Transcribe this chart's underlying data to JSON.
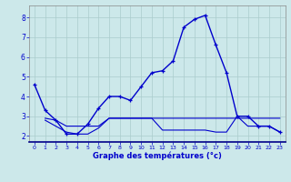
{
  "xlabel": "Graphe des températures (°c)",
  "bg_color": "#cce8ea",
  "grid_color": "#aacccc",
  "line_color": "#0000cc",
  "xlim": [
    -0.5,
    23.5
  ],
  "ylim": [
    1.7,
    8.6
  ],
  "yticks": [
    2,
    3,
    4,
    5,
    6,
    7,
    8
  ],
  "xticks": [
    0,
    1,
    2,
    3,
    4,
    5,
    6,
    7,
    8,
    9,
    10,
    11,
    12,
    13,
    14,
    15,
    16,
    17,
    18,
    19,
    20,
    21,
    22,
    23
  ],
  "series1_x": [
    0,
    1,
    2,
    3,
    4,
    5,
    6,
    7,
    8,
    9,
    10,
    11,
    12,
    13,
    14,
    15,
    16,
    17,
    18,
    19,
    20,
    21,
    22,
    23
  ],
  "series1_y": [
    4.6,
    3.3,
    2.8,
    2.1,
    2.1,
    2.6,
    3.4,
    4.0,
    4.0,
    3.8,
    4.5,
    5.2,
    5.3,
    5.8,
    7.5,
    7.9,
    8.1,
    6.6,
    5.2,
    3.0,
    3.0,
    2.5,
    2.5,
    2.2
  ],
  "series2_x": [
    1,
    2,
    3,
    4,
    5,
    6,
    7,
    8,
    9,
    10,
    11,
    12,
    13,
    14,
    15,
    16,
    17,
    18,
    19,
    20,
    21,
    22,
    23
  ],
  "series2_y": [
    2.8,
    2.5,
    2.2,
    2.1,
    2.1,
    2.4,
    2.9,
    2.9,
    2.9,
    2.9,
    2.9,
    2.3,
    2.3,
    2.3,
    2.3,
    2.3,
    2.2,
    2.2,
    3.0,
    2.5,
    2.5,
    2.5,
    2.2
  ],
  "series3_x": [
    1,
    2,
    3,
    4,
    5,
    6,
    7,
    8,
    9,
    10,
    11,
    12,
    13,
    14,
    15,
    16,
    17,
    18,
    19,
    20,
    21,
    22,
    23
  ],
  "series3_y": [
    2.9,
    2.8,
    2.5,
    2.5,
    2.5,
    2.5,
    2.9,
    2.9,
    2.9,
    2.9,
    2.9,
    2.9,
    2.9,
    2.9,
    2.9,
    2.9,
    2.9,
    2.9,
    2.9,
    2.9,
    2.9,
    2.9,
    2.9
  ]
}
